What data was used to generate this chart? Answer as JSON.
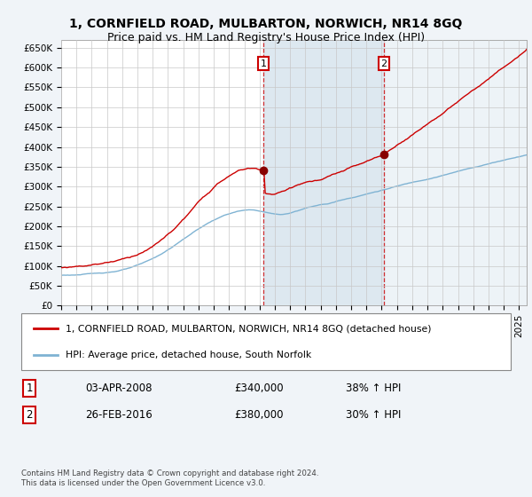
{
  "title": "1, CORNFIELD ROAD, MULBARTON, NORWICH, NR14 8GQ",
  "subtitle": "Price paid vs. HM Land Registry's House Price Index (HPI)",
  "title_fontsize": 10,
  "subtitle_fontsize": 9,
  "ylabel_ticks": [
    "£0",
    "£50K",
    "£100K",
    "£150K",
    "£200K",
    "£250K",
    "£300K",
    "£350K",
    "£400K",
    "£450K",
    "£500K",
    "£550K",
    "£600K",
    "£650K"
  ],
  "ytick_values": [
    0,
    50000,
    100000,
    150000,
    200000,
    250000,
    300000,
    350000,
    400000,
    450000,
    500000,
    550000,
    600000,
    650000
  ],
  "ylim": [
    0,
    670000
  ],
  "xlim_start": 1995.0,
  "xlim_end": 2025.5,
  "sale1_year": 2008.25,
  "sale1_price": 340000,
  "sale2_year": 2016.15,
  "sale2_price": 380000,
  "sale_color": "#cc0000",
  "hpi_color": "#7fb3d3",
  "legend_sale_label": "1, CORNFIELD ROAD, MULBARTON, NORWICH, NR14 8GQ (detached house)",
  "legend_hpi_label": "HPI: Average price, detached house, South Norfolk",
  "annotation1_text": "1",
  "annotation2_text": "2",
  "table_row1": [
    "1",
    "03-APR-2008",
    "£340,000",
    "38% ↑ HPI"
  ],
  "table_row2": [
    "2",
    "26-FEB-2016",
    "£380,000",
    "30% ↑ HPI"
  ],
  "footer": "Contains HM Land Registry data © Crown copyright and database right 2024.\nThis data is licensed under the Open Government Licence v3.0.",
  "background_color": "#f0f4f8",
  "plot_bg_color": "#ffffff",
  "grid_color": "#c8c8c8",
  "span_color": "#dde8f0"
}
